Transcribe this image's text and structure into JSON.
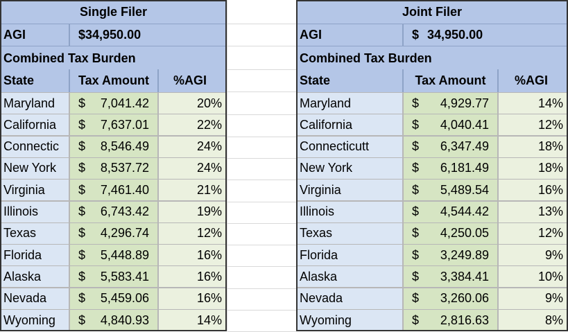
{
  "currency": "$",
  "tables": [
    {
      "title": "Single Filer",
      "agi_label": "AGI",
      "agi": "34,950.00",
      "section": "Combined Tax Burden",
      "headers": [
        "State",
        "Tax Amount",
        "%AGI"
      ],
      "rows": [
        [
          "Maryland",
          "7,041.42",
          "20%"
        ],
        [
          "California",
          "7,637.01",
          "22%"
        ],
        [
          "Connectic",
          "8,546.49",
          "24%"
        ],
        [
          "New York",
          "8,537.72",
          "24%"
        ],
        [
          "Virginia",
          "7,461.40",
          "21%"
        ],
        [
          "Illinois",
          "6,743.42",
          "19%"
        ],
        [
          "Texas",
          "4,296.74",
          "12%"
        ],
        [
          "Florida",
          "5,448.89",
          "16%"
        ],
        [
          "Alaska",
          "5,583.41",
          "16%"
        ],
        [
          "Nevada",
          "5,459.06",
          "16%"
        ],
        [
          "Wyoming",
          "4,840.93",
          "14%"
        ]
      ]
    },
    {
      "title": "Joint Filer",
      "agi_label": "AGI",
      "agi": "34,950.00",
      "section": "Combined Tax Burden",
      "headers": [
        "State",
        "Tax Amount",
        "%AGI"
      ],
      "rows": [
        [
          "Maryland",
          "4,929.77",
          "14%"
        ],
        [
          "California",
          "4,040.41",
          "12%"
        ],
        [
          "Connecticutt",
          "6,347.49",
          "18%"
        ],
        [
          "New York",
          "6,181.49",
          "18%"
        ],
        [
          "Virginia",
          "5,489.54",
          "16%"
        ],
        [
          "Illinois",
          "4,544.42",
          "13%"
        ],
        [
          "Texas",
          "4,250.05",
          "12%"
        ],
        [
          "Florida",
          "3,249.89",
          "9%"
        ],
        [
          "Alaska",
          "3,384.41",
          "10%"
        ],
        [
          "Nevada",
          "3,260.06",
          "9%"
        ],
        [
          "Wyoming",
          "2,816.63",
          "8%"
        ]
      ]
    }
  ]
}
